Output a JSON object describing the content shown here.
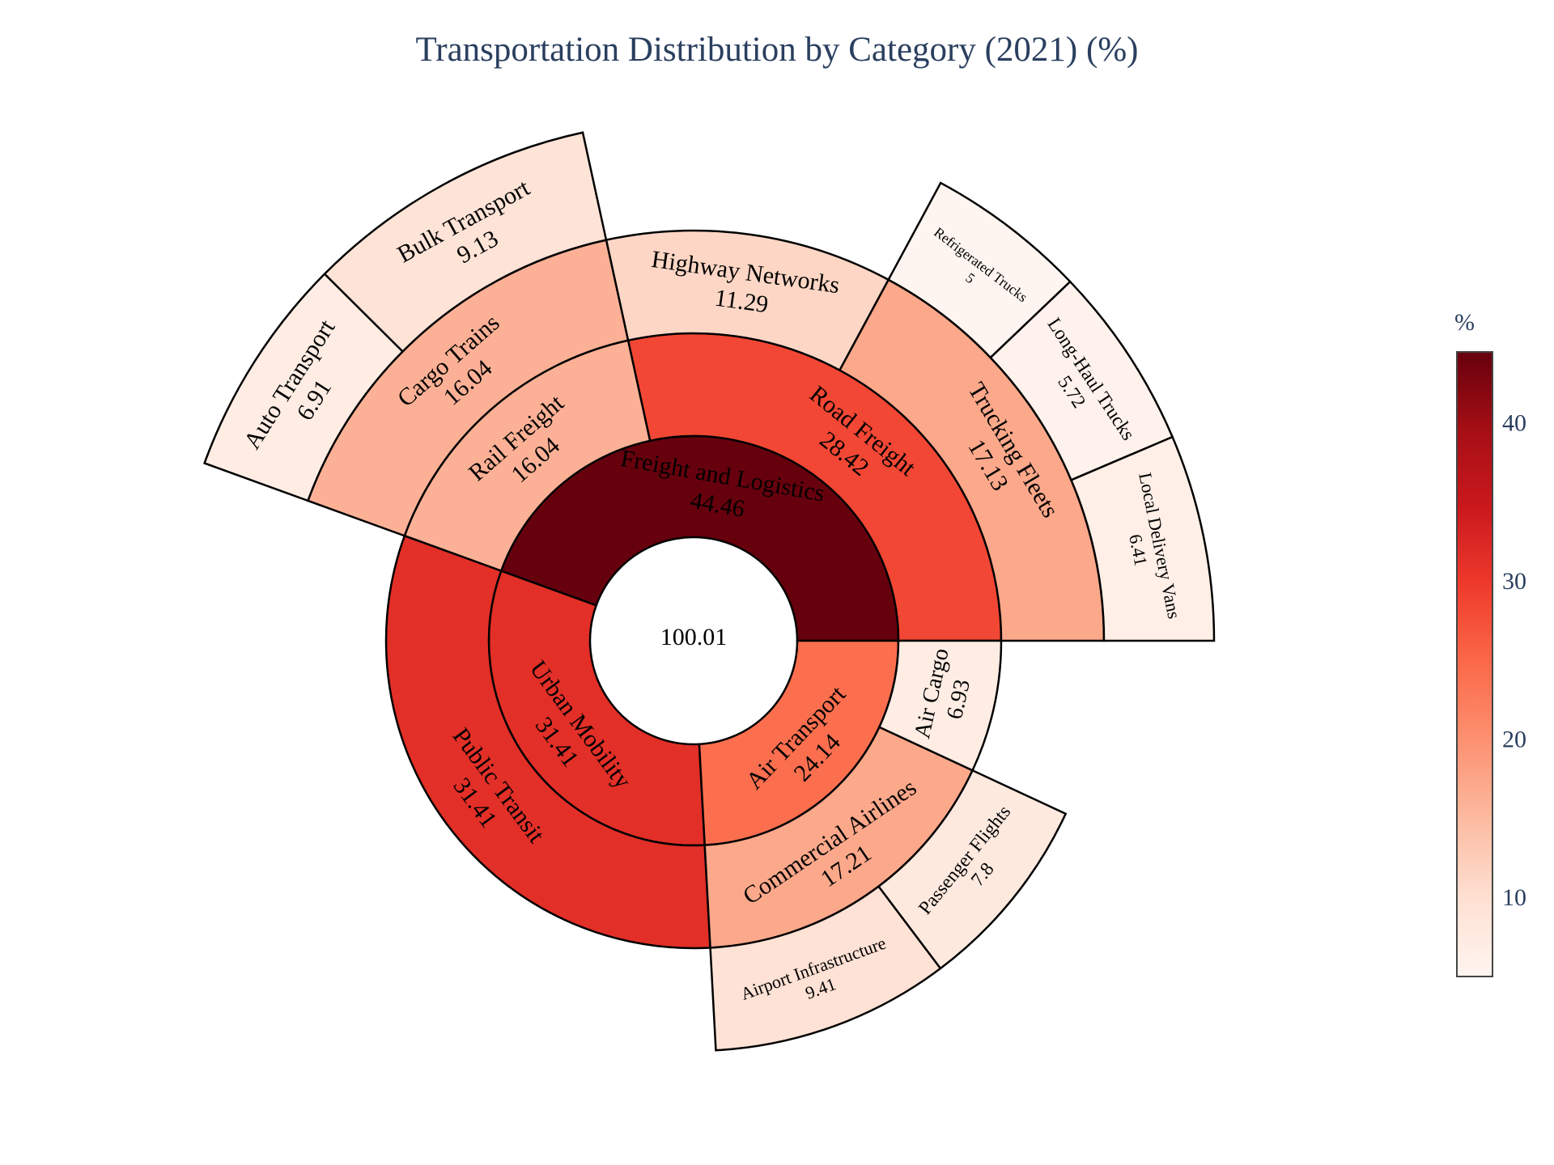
{
  "chart_data": {
    "type": "sunburst",
    "title": "Transportation Distribution by Category (2021) (%)",
    "root": {
      "label": "",
      "value": 100.01
    },
    "nodes": [
      {
        "label": "Freight and Logistics",
        "value": 44.46,
        "parent": "",
        "depth": 1
      },
      {
        "label": "Urban Mobility",
        "value": 31.41,
        "parent": "",
        "depth": 1
      },
      {
        "label": "Air Transport",
        "value": 24.14,
        "parent": "",
        "depth": 1
      },
      {
        "label": "Road Freight",
        "value": 28.42,
        "parent": "Freight and Logistics",
        "depth": 2
      },
      {
        "label": "Rail Freight",
        "value": 16.04,
        "parent": "Freight and Logistics",
        "depth": 2
      },
      {
        "label": "Public Transit",
        "value": 31.41,
        "parent": "Urban Mobility",
        "depth": 2
      },
      {
        "label": "Commercial Airlines",
        "value": 17.21,
        "parent": "Air Transport",
        "depth": 2
      },
      {
        "label": "Air Cargo",
        "value": 6.93,
        "parent": "Air Transport",
        "depth": 2
      },
      {
        "label": "Trucking Fleets",
        "value": 17.13,
        "parent": "Road Freight",
        "depth": 3
      },
      {
        "label": "Highway Networks",
        "value": 11.29,
        "parent": "Road Freight",
        "depth": 3
      },
      {
        "label": "Cargo Trains",
        "value": 16.04,
        "parent": "Rail Freight",
        "depth": 3
      },
      {
        "label": "Airport Infrastructure",
        "value": 9.41,
        "parent": "Commercial Airlines",
        "depth": 3
      },
      {
        "label": "Passenger Flights",
        "value": 7.8,
        "parent": "Commercial Airlines",
        "depth": 3
      },
      {
        "label": "Local Delivery Vans",
        "value": 6.41,
        "parent": "Trucking Fleets",
        "depth": 4
      },
      {
        "label": "Long-Haul Trucks",
        "value": 5.72,
        "parent": "Trucking Fleets",
        "depth": 4
      },
      {
        "label": "Refrigerated Trucks",
        "value": 5,
        "parent": "Trucking Fleets",
        "depth": 4
      },
      {
        "label": "Bulk Transport",
        "value": 9.13,
        "parent": "Cargo Trains",
        "depth": 4
      },
      {
        "label": "Auto Transport",
        "value": 6.91,
        "parent": "Cargo Trains",
        "depth": 4
      }
    ],
    "colorscale": [
      "#fff5f0",
      "#fee0d2",
      "#fcbba1",
      "#fc9272",
      "#fb6a4a",
      "#ef3b2c",
      "#cb181d",
      "#a50f15",
      "#67000d"
    ],
    "color_range": [
      5,
      44.46
    ],
    "colorbar": {
      "title": "%",
      "ticks": [
        10,
        20,
        30,
        40
      ]
    },
    "segment_stroke": "#000000"
  }
}
